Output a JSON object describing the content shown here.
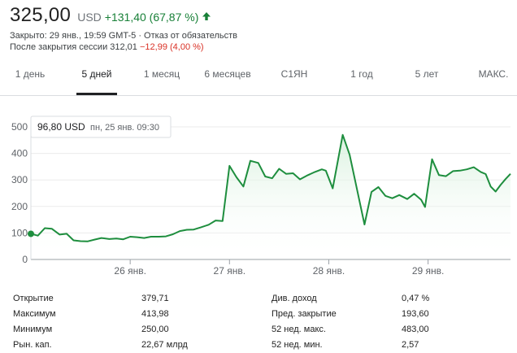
{
  "quote": {
    "price": "325,00",
    "currency": "USD",
    "change": "+131,40 (67,87 %)",
    "closed_line": "Закрыто: 29 янв., 19:59 GMT-5 · Отказ от обязательств",
    "after_hours_label": "После закрытия сессии 312,01",
    "after_hours_change": "−12,99 (4,00 %)",
    "positive_color": "#188038",
    "negative_color": "#d93025"
  },
  "tabs": [
    {
      "label": "1 день",
      "active": false
    },
    {
      "label": "5 дней",
      "active": true
    },
    {
      "label": "1 месяц",
      "active": false
    },
    {
      "label": "6 месяцев",
      "active": false
    },
    {
      "label": "С1ЯН",
      "active": false
    },
    {
      "label": "1 год",
      "active": false
    },
    {
      "label": "5 лет",
      "active": false
    },
    {
      "label": "МАКС.",
      "active": false
    }
  ],
  "chart_data": {
    "type": "area",
    "y_ticks": [
      "0",
      "100",
      "200",
      "300",
      "400",
      "500"
    ],
    "ylim": [
      0,
      500
    ],
    "xlim": [
      25.0,
      29.83
    ],
    "x_ticks": [
      {
        "x": 26,
        "label": "26 янв."
      },
      {
        "x": 27,
        "label": "27 янв."
      },
      {
        "x": 28,
        "label": "28 янв."
      },
      {
        "x": 29,
        "label": "29 янв."
      }
    ],
    "series_color": "#1e8e3e",
    "fill_color": "#e6f4ea",
    "tooltip": {
      "value": "96,80 USD",
      "date": "пн, 25 янв. 09:30",
      "x": 25.0,
      "y": 96.8
    },
    "points": [
      {
        "x": 25.0,
        "y": 96.8
      },
      {
        "x": 25.07,
        "y": 90
      },
      {
        "x": 25.14,
        "y": 118
      },
      {
        "x": 25.21,
        "y": 116
      },
      {
        "x": 25.29,
        "y": 94
      },
      {
        "x": 25.36,
        "y": 97
      },
      {
        "x": 25.43,
        "y": 72
      },
      {
        "x": 25.5,
        "y": 69
      },
      {
        "x": 25.57,
        "y": 68
      },
      {
        "x": 25.64,
        "y": 75
      },
      {
        "x": 25.71,
        "y": 81
      },
      {
        "x": 25.79,
        "y": 77
      },
      {
        "x": 25.86,
        "y": 79
      },
      {
        "x": 25.93,
        "y": 76
      },
      {
        "x": 26.0,
        "y": 86
      },
      {
        "x": 26.07,
        "y": 84
      },
      {
        "x": 26.14,
        "y": 81
      },
      {
        "x": 26.21,
        "y": 86
      },
      {
        "x": 26.29,
        "y": 86
      },
      {
        "x": 26.36,
        "y": 87
      },
      {
        "x": 26.43,
        "y": 95
      },
      {
        "x": 26.5,
        "y": 107
      },
      {
        "x": 26.57,
        "y": 112
      },
      {
        "x": 26.64,
        "y": 113
      },
      {
        "x": 26.71,
        "y": 121
      },
      {
        "x": 26.79,
        "y": 131
      },
      {
        "x": 26.86,
        "y": 147
      },
      {
        "x": 26.93,
        "y": 145
      },
      {
        "x": 27.0,
        "y": 353
      },
      {
        "x": 27.07,
        "y": 310
      },
      {
        "x": 27.14,
        "y": 275
      },
      {
        "x": 27.21,
        "y": 372
      },
      {
        "x": 27.29,
        "y": 364
      },
      {
        "x": 27.36,
        "y": 313
      },
      {
        "x": 27.43,
        "y": 306
      },
      {
        "x": 27.5,
        "y": 342
      },
      {
        "x": 27.57,
        "y": 323
      },
      {
        "x": 27.64,
        "y": 325
      },
      {
        "x": 27.71,
        "y": 302
      },
      {
        "x": 27.79,
        "y": 318
      },
      {
        "x": 27.86,
        "y": 330
      },
      {
        "x": 27.93,
        "y": 340
      },
      {
        "x": 27.97,
        "y": 335
      },
      {
        "x": 28.04,
        "y": 268
      },
      {
        "x": 28.14,
        "y": 470
      },
      {
        "x": 28.21,
        "y": 395
      },
      {
        "x": 28.36,
        "y": 132
      },
      {
        "x": 28.43,
        "y": 255
      },
      {
        "x": 28.5,
        "y": 273
      },
      {
        "x": 28.57,
        "y": 240
      },
      {
        "x": 28.64,
        "y": 231
      },
      {
        "x": 28.71,
        "y": 243
      },
      {
        "x": 28.79,
        "y": 228
      },
      {
        "x": 28.86,
        "y": 248
      },
      {
        "x": 28.93,
        "y": 225
      },
      {
        "x": 28.97,
        "y": 198
      },
      {
        "x": 29.04,
        "y": 378
      },
      {
        "x": 29.11,
        "y": 318
      },
      {
        "x": 29.18,
        "y": 314
      },
      {
        "x": 29.25,
        "y": 333
      },
      {
        "x": 29.32,
        "y": 335
      },
      {
        "x": 29.39,
        "y": 340
      },
      {
        "x": 29.46,
        "y": 348
      },
      {
        "x": 29.53,
        "y": 330
      },
      {
        "x": 29.58,
        "y": 322
      },
      {
        "x": 29.63,
        "y": 275
      },
      {
        "x": 29.68,
        "y": 256
      },
      {
        "x": 29.73,
        "y": 281
      },
      {
        "x": 29.78,
        "y": 303
      },
      {
        "x": 29.83,
        "y": 323
      }
    ]
  },
  "stats": {
    "left": [
      {
        "label": "Открытие",
        "value": "379,71"
      },
      {
        "label": "Максимум",
        "value": "413,98"
      },
      {
        "label": "Минимум",
        "value": "250,00"
      },
      {
        "label": "Рын. кап.",
        "value": "22,67 млрд"
      }
    ],
    "right": [
      {
        "label": "Див. доход",
        "value": "0,47 %"
      },
      {
        "label": "Пред. закрытие",
        "value": "193,60"
      },
      {
        "label": "52 нед. макс.",
        "value": "483,00"
      },
      {
        "label": "52 нед. мин.",
        "value": "2,57"
      }
    ]
  }
}
